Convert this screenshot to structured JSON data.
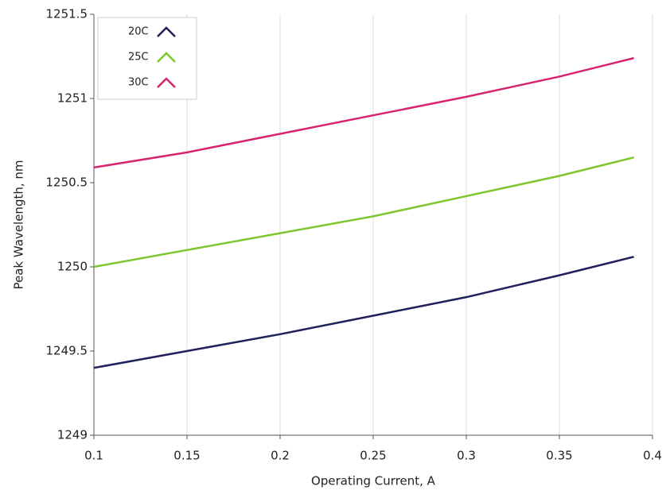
{
  "chart_data": {
    "type": "line",
    "x_label": "Operating Current, A",
    "y_label": "Peak Wavelength, nm",
    "x": [
      0.1,
      0.15,
      0.2,
      0.25,
      0.3,
      0.35,
      0.39
    ],
    "series": [
      {
        "name": "20C",
        "color": "#1f1f5e",
        "values": [
          1249.4,
          1249.5,
          1249.6,
          1249.71,
          1249.82,
          1249.95,
          1250.06
        ]
      },
      {
        "name": "25C",
        "color": "#7dc62e",
        "values": [
          1250.0,
          1250.1,
          1250.2,
          1250.3,
          1250.42,
          1250.54,
          1250.65
        ]
      },
      {
        "name": "30C",
        "color": "#d6246e",
        "values": [
          1250.59,
          1250.68,
          1250.79,
          1250.9,
          1251.01,
          1251.13,
          1251.24
        ]
      }
    ],
    "xlim": [
      0.1,
      0.4
    ],
    "xticks": [
      0.1,
      0.15,
      0.2,
      0.25,
      0.3,
      0.35,
      0.4
    ],
    "ylim": [
      1249,
      1251.5
    ],
    "yticks": [
      1249,
      1249.5,
      1250,
      1250.5,
      1251,
      1251.5
    ],
    "grid": true,
    "legend": "upper-left"
  }
}
